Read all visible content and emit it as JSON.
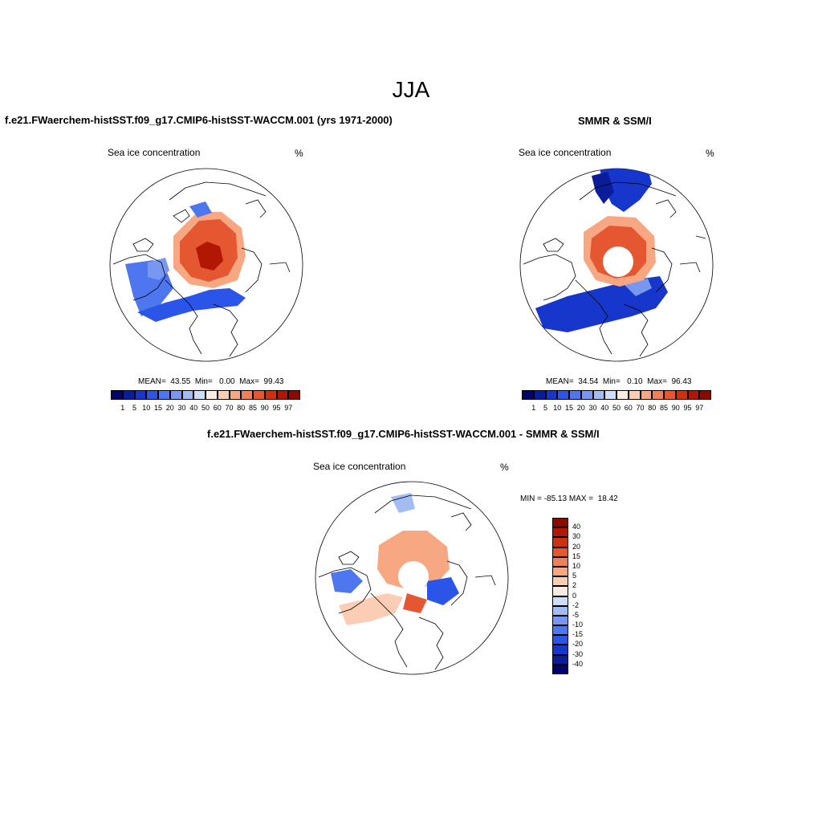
{
  "figure": {
    "season_title": "JJA",
    "model_title": "f.e21.FWaerchem-histSST.f09_g17.CMIP6-histSST-WACCM.001 (yrs 1971-2000)",
    "obs_title": "SMMR & SSM/I",
    "diff_title": "f.e21.FWaerchem-histSST.f09_g17.CMIP6-histSST-WACCM.001 - SMMR & SSM/I"
  },
  "panels": {
    "model": {
      "variable": "Sea ice concentration",
      "units": "%",
      "stats": "MEAN=  43.55  Min=   0.00  Max=  99.43"
    },
    "obs": {
      "variable": "Sea ice concentration",
      "units": "%",
      "stats": "MEAN=  34.54  Min=   0.10  Max=  96.43"
    },
    "diff": {
      "variable": "Sea ice concentration",
      "units": "%",
      "stats": "MIN = -85.13 MAX =  18.42"
    }
  },
  "colorbars": {
    "horizontal_labels": [
      "1",
      "5",
      "10",
      "15",
      "20",
      "30",
      "40",
      "50",
      "60",
      "70",
      "80",
      "85",
      "90",
      "95",
      "97"
    ],
    "horizontal_colors": [
      "#03036a",
      "#0a1c9a",
      "#1737cc",
      "#2a55e8",
      "#4e76ee",
      "#7797f0",
      "#a3bdf3",
      "#cfdef8",
      "#fbece1",
      "#fbcdb5",
      "#f7a882",
      "#f0805a",
      "#e45730",
      "#d0300f",
      "#b11703",
      "#8b0a00"
    ],
    "vertical_labels": [
      "40",
      "30",
      "20",
      "15",
      "10",
      "5",
      "2",
      "0",
      "-2",
      "-5",
      "-10",
      "-15",
      "-20",
      "-30",
      "-40"
    ],
    "vertical_colors": [
      "#8b0a00",
      "#b11703",
      "#d0300f",
      "#e45730",
      "#f0805a",
      "#f7a882",
      "#fbcdb5",
      "#fbece1",
      "#cfdef8",
      "#a3bdf3",
      "#7797f0",
      "#4e76ee",
      "#2a55e8",
      "#1737cc",
      "#0a1c9a",
      "#03036a"
    ]
  }
}
